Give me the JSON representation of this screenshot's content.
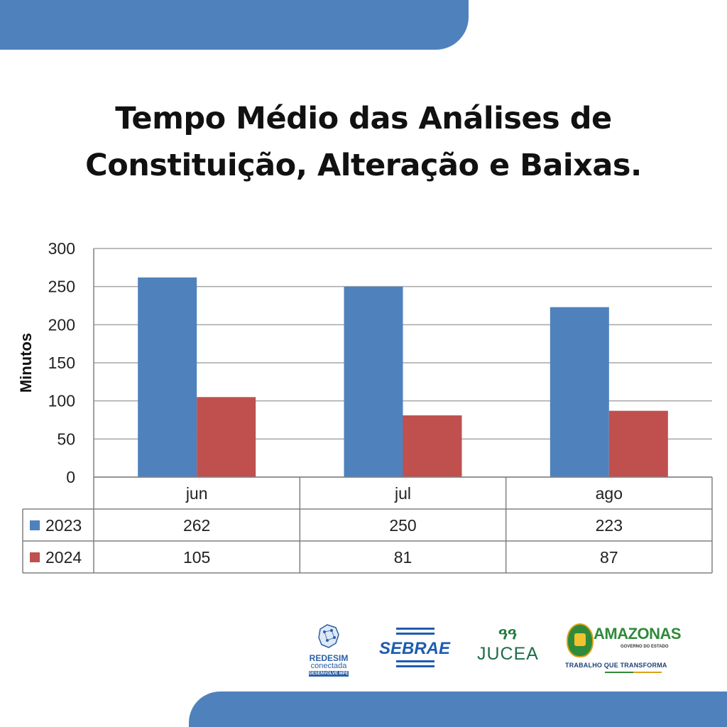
{
  "title": {
    "line1": "Tempo Médio das Análises de",
    "line2": "Constituição, Alteração e Baixas."
  },
  "colors": {
    "band": "#4f81bd",
    "series_2023": "#4f81bd",
    "series_2024": "#c0504d",
    "grid": "#a6a6a6",
    "border": "#808080"
  },
  "chart_data": {
    "type": "bar",
    "categories": [
      "jun",
      "jul",
      "ago"
    ],
    "series": [
      {
        "name": "2023",
        "values": [
          262,
          250,
          223
        ],
        "color": "#4f81bd"
      },
      {
        "name": "2024",
        "values": [
          105,
          81,
          87
        ],
        "color": "#c0504d"
      }
    ],
    "xlabel": "",
    "ylabel": "Minutos",
    "ylim": [
      0,
      300
    ],
    "yticks": [
      0,
      50,
      100,
      150,
      200,
      250,
      300
    ],
    "grid": true,
    "legend": "data-table-below",
    "data_table": true
  },
  "logos": {
    "redesim": {
      "name": "REDESIM",
      "sub": "conectada",
      "tag": "DESENVOLVE MPE",
      "icon": "map-network-icon"
    },
    "sebrae": {
      "name": "SEBRAE",
      "icon": "sebrae-bars-icon"
    },
    "jucea": {
      "mark": "ዓዓ",
      "name": "JUCEA"
    },
    "amazonas": {
      "name": "AMAZONAS",
      "gov": "GOVERNO DO ESTADO",
      "slogan": "TRABALHO QUE TRANSFORMA",
      "icon": "state-crest-icon"
    }
  }
}
